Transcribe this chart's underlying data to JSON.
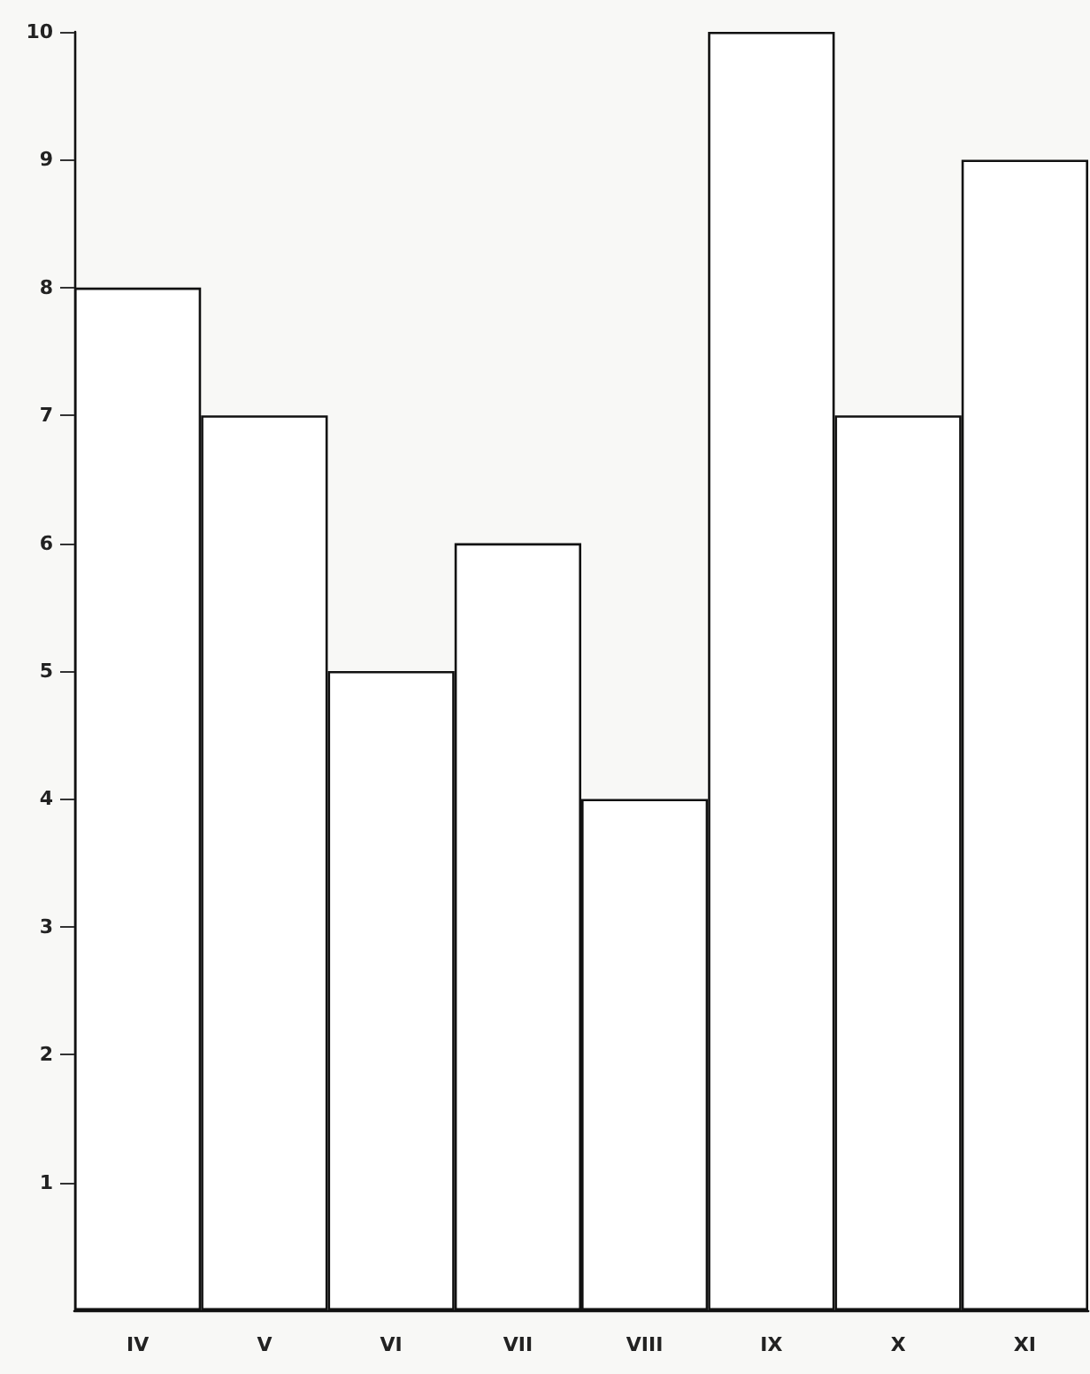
{
  "chart_data": {
    "type": "bar",
    "categories": [
      "IV",
      "V",
      "VI",
      "VII",
      "VIII",
      "IX",
      "X",
      "XI"
    ],
    "values": [
      8,
      7,
      5,
      6,
      4,
      10,
      7,
      9
    ],
    "color": "#ffffff",
    "ylim": [
      0,
      10
    ],
    "yticks": [
      1,
      2,
      3,
      4,
      5,
      6,
      7,
      8,
      9,
      10
    ],
    "grid": false
  }
}
